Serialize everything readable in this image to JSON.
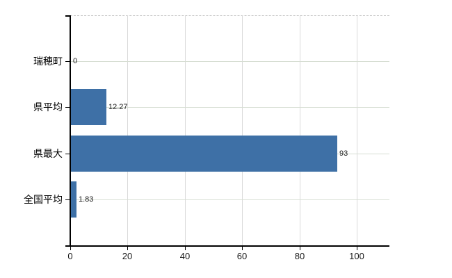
{
  "chart": {
    "background_color": "#ffffff"
  },
  "chart_data": {
    "type": "bar",
    "orientation": "horizontal",
    "title": "",
    "categories": [
      "瑞穂町",
      "県平均",
      "県最大",
      "全国平均"
    ],
    "values": [
      0,
      12.27,
      93,
      1.83
    ],
    "value_labels": [
      "0",
      "12.27",
      "93",
      "1.83"
    ],
    "x_tick_labels": [
      "0",
      "20",
      "40",
      "60",
      "80",
      "100"
    ],
    "x_tick_values": [
      0,
      20,
      40,
      60,
      80,
      100
    ],
    "xlim": [
      0,
      111.5
    ],
    "grid": true,
    "legend": false,
    "bar_color": "#3e70a6",
    "axis_color": "#000000",
    "category_gridline_color": "#d7ded3",
    "value_gridline_color": "#dadada",
    "plot_top_border_color": "#c6c6c6",
    "category_label_color": "#000000",
    "tick_label_color": "#1a1a1a",
    "value_label_color": "#1a1a1a"
  }
}
